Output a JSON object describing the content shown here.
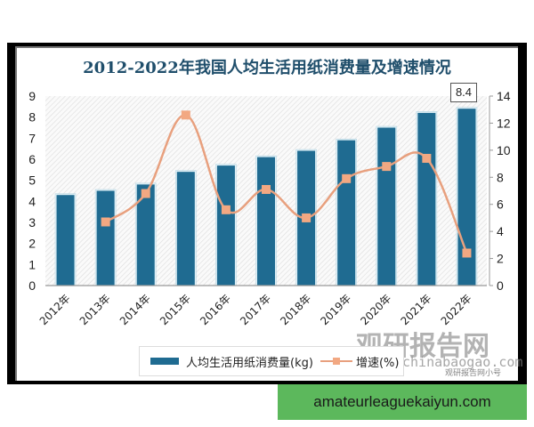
{
  "title": "2012-2022年我国人均生活用纸消费量及增速情况",
  "callout": "8.4",
  "legend": {
    "bar_label": "人均生活用纸消费量(kg)",
    "line_label": "增速(%)"
  },
  "watermark": {
    "brand": "观研报告网",
    "site": "chinabaogao.com",
    "wechat": "观研报告网小号"
  },
  "footer_link": "amateurleaguekaiyun.com",
  "colors": {
    "bar": "#1f6b91",
    "line": "#e8a07e",
    "title": "#1f4e6b",
    "footer_bg": "#5cb85c"
  },
  "chart_data": {
    "type": "bar",
    "title": "2012-2022年我国人均生活用纸消费量及增速情况",
    "categories": [
      "2012年",
      "2013年",
      "2014年",
      "2015年",
      "2016年",
      "2017年",
      "2018年",
      "2019年",
      "2020年",
      "2021年",
      "2022年"
    ],
    "series": [
      {
        "name": "人均生活用纸消费量(kg)",
        "type": "bar",
        "axis": "left",
        "values": [
          4.3,
          4.5,
          4.8,
          5.4,
          5.7,
          6.1,
          6.4,
          6.9,
          7.5,
          8.2,
          8.4
        ]
      },
      {
        "name": "增速(%)",
        "type": "line",
        "axis": "right",
        "values": [
          null,
          4.7,
          6.8,
          12.6,
          5.6,
          7.1,
          5.0,
          7.9,
          8.8,
          9.4,
          2.4
        ]
      }
    ],
    "ylim_left": [
      0,
      9
    ],
    "yticks_left": [
      0,
      1,
      2,
      3,
      4,
      5,
      6,
      7,
      8,
      9
    ],
    "ylim_right": [
      0,
      14
    ],
    "yticks_right": [
      0,
      2,
      4,
      6,
      8,
      10,
      12,
      14
    ],
    "annotations": [
      {
        "category": "2022年",
        "text": "8.4"
      }
    ],
    "legend_position": "bottom",
    "grid": false
  }
}
